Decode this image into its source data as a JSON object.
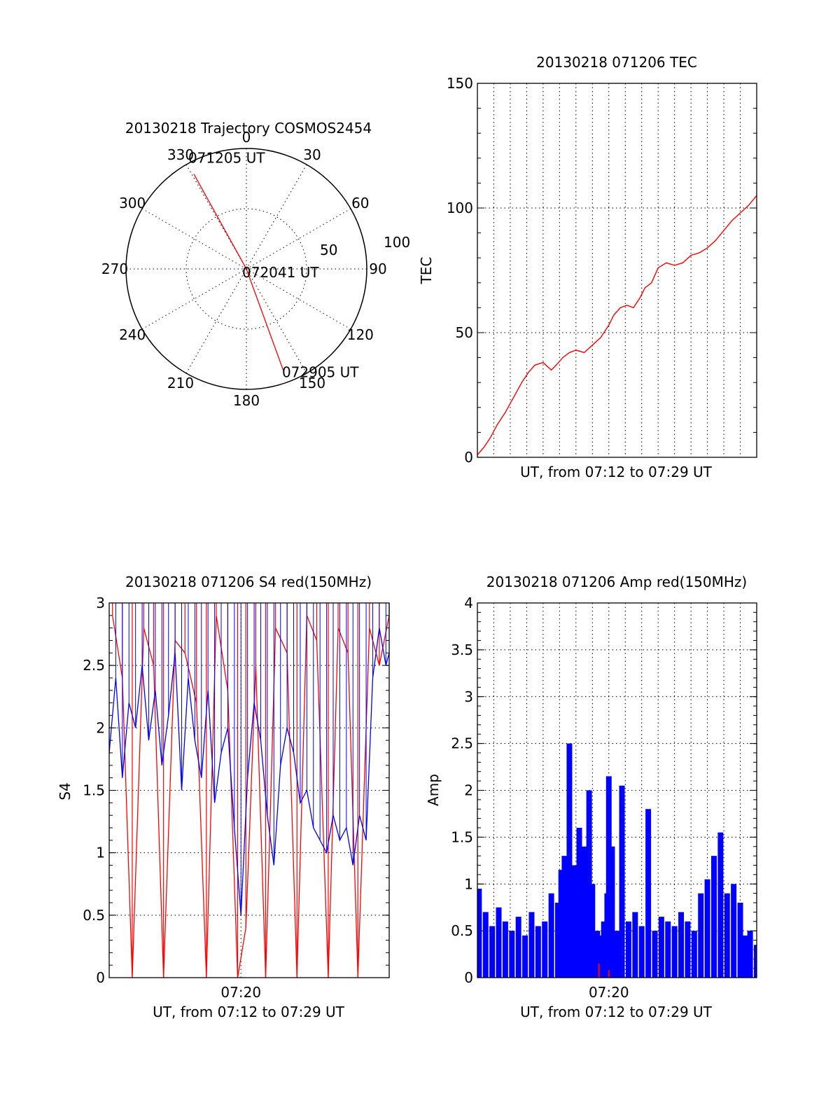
{
  "chart_data": [
    {
      "type": "polar",
      "title": "20130218 Trajectory COSMOS2454",
      "r_ticks": [
        50,
        100
      ],
      "angle_labels": [
        "0",
        "30",
        "60",
        "90",
        "120",
        "150",
        "180",
        "210",
        "240",
        "270",
        "300",
        "330"
      ],
      "angle_values": [
        0,
        30,
        60,
        90,
        120,
        150,
        180,
        210,
        240,
        270,
        300,
        330
      ],
      "rmax": 100,
      "trajectory": {
        "color": "#ff0000",
        "points": [
          {
            "az": 331,
            "zen": 90,
            "label": "071205 UT"
          },
          {
            "az": 0,
            "zen": 0,
            "label": "072041 UT"
          },
          {
            "az": 160,
            "zen": 90,
            "label": "072905 UT"
          }
        ]
      }
    },
    {
      "type": "line",
      "title": "20130218 071206 TEC",
      "xlabel": "UT, from 07:12 to 07:29 UT",
      "ylabel": "TEC",
      "ylim": [
        0,
        150
      ],
      "yticks": [
        "0",
        "50",
        "100",
        "150"
      ],
      "xlim": [
        0,
        17
      ],
      "color": "#ff0000",
      "series": [
        {
          "x": [
            0,
            0.4,
            0.8,
            1.2,
            1.7,
            2.2,
            2.7,
            3.1,
            3.5,
            4.0,
            4.5,
            4.8,
            5.2,
            5.6,
            6.0,
            6.5,
            7.0,
            7.5,
            8.0,
            8.3,
            8.7,
            9.1,
            9.5,
            9.9,
            10.2,
            10.6,
            11.0,
            11.5,
            12.0,
            12.5,
            13.0,
            13.5,
            14.0,
            14.5,
            15.0,
            15.5,
            16.0,
            16.5,
            17.0
          ],
          "y": [
            1,
            4,
            8,
            13,
            18,
            24,
            30,
            34,
            37,
            38,
            35,
            37,
            40,
            42,
            43,
            42,
            45,
            48,
            53,
            57,
            60,
            61,
            60,
            64,
            68,
            70,
            76,
            78,
            77,
            78,
            81,
            82,
            84,
            87,
            91,
            95,
            98,
            101,
            105
          ]
        }
      ]
    },
    {
      "type": "line",
      "title": "20130218 071206 S4 red(150MHz)",
      "xlabel": "UT, from 07:12 to 07:29 UT",
      "ylabel": "S4",
      "ylim": [
        0,
        3
      ],
      "yticks": [
        "0",
        "0.5",
        "1",
        "1.5",
        "2",
        "2.5",
        "3"
      ],
      "xlim": [
        0,
        17
      ],
      "xtick_label": "07:20",
      "xtick_value": 8,
      "series": [
        {
          "color": "#ff0000",
          "x": [
            0.2,
            0.8,
            1.4,
            2.1,
            2.7,
            3.3,
            4.0,
            4.6,
            5.3,
            5.9,
            6.5,
            7.2,
            7.8,
            8.3,
            8.9,
            9.5,
            10.1,
            10.8,
            11.4,
            12.0,
            12.6,
            13.3,
            13.9,
            14.5,
            15.1,
            15.8,
            16.4,
            17.0
          ],
          "y": [
            2.9,
            2.4,
            0,
            2.8,
            2.5,
            0,
            2.7,
            2.6,
            2.2,
            0,
            2.9,
            2.3,
            0,
            0.4,
            2.5,
            0,
            2.8,
            2.6,
            0,
            2.9,
            2.7,
            0,
            2.8,
            2.6,
            0,
            2.8,
            2.5,
            2.9
          ]
        },
        {
          "color": "#0000ff",
          "x": [
            0.0,
            0.4,
            0.8,
            1.2,
            1.6,
            2.0,
            2.4,
            2.8,
            3.2,
            3.6,
            4.0,
            4.4,
            4.8,
            5.2,
            5.6,
            6.0,
            6.4,
            6.8,
            7.2,
            7.6,
            8.0,
            8.4,
            8.8,
            9.2,
            9.6,
            10.0,
            10.4,
            10.8,
            11.2,
            11.6,
            12.0,
            12.4,
            12.8,
            13.2,
            13.6,
            14.0,
            14.4,
            14.8,
            15.2,
            15.6,
            16.0,
            16.4,
            16.8,
            17.0
          ],
          "y": [
            1.8,
            2.4,
            1.6,
            2.2,
            2.0,
            2.5,
            1.9,
            2.3,
            1.7,
            2.1,
            2.6,
            1.5,
            2.4,
            1.9,
            1.6,
            2.3,
            1.4,
            1.8,
            2.0,
            1.2,
            0.5,
            1.6,
            2.2,
            1.9,
            1.3,
            0.9,
            1.7,
            2.0,
            1.8,
            1.4,
            1.5,
            1.2,
            1.1,
            1.0,
            1.3,
            1.1,
            1.2,
            0.9,
            1.3,
            1.1,
            2.4,
            2.8,
            2.5,
            2.6
          ]
        }
      ]
    },
    {
      "type": "bar",
      "title": "20130218 071206 Amp red(150MHz)",
      "xlabel": "UT, from 07:12 to 07:29 UT",
      "ylabel": "Amp",
      "ylim": [
        0,
        4
      ],
      "yticks": [
        "0",
        "0.5",
        "1",
        "1.5",
        "2",
        "2.5",
        "3",
        "3.5",
        "4"
      ],
      "xlim": [
        0,
        17
      ],
      "xtick_label": "07:20",
      "xtick_value": 8,
      "color": "#0000ff",
      "series": [
        {
          "x": [
            0.1,
            0.5,
            0.9,
            1.3,
            1.7,
            2.1,
            2.5,
            2.9,
            3.3,
            3.7,
            4.1,
            4.5,
            4.9,
            5.1,
            5.3,
            5.6,
            5.9,
            6.2,
            6.5,
            6.8,
            7.0,
            7.3,
            7.5,
            7.7,
            7.9,
            8.0,
            8.2,
            8.5,
            8.8,
            9.2,
            9.6,
            10.0,
            10.4,
            10.8,
            11.2,
            11.6,
            12.0,
            12.4,
            12.8,
            13.2,
            13.6,
            14.0,
            14.4,
            14.8,
            15.2,
            15.6,
            16.0,
            16.3,
            16.6,
            17.0
          ],
          "y": [
            0.95,
            0.7,
            0.55,
            0.75,
            0.6,
            0.5,
            0.65,
            0.45,
            0.7,
            0.55,
            0.6,
            0.9,
            0.8,
            1.15,
            1.3,
            2.5,
            1.2,
            1.6,
            1.4,
            2.0,
            1.0,
            0.5,
            0.45,
            0.6,
            0.9,
            2.15,
            1.4,
            0.5,
            2.05,
            0.6,
            0.7,
            0.55,
            1.8,
            0.5,
            0.65,
            0.6,
            0.55,
            0.7,
            0.6,
            0.5,
            0.9,
            1.05,
            1.3,
            1.55,
            0.9,
            1.0,
            0.8,
            0.45,
            0.5,
            0.35
          ]
        }
      ],
      "red_marks": [
        {
          "x": 7.4,
          "y": 0.15
        },
        {
          "x": 8.0,
          "y": 0.08
        }
      ]
    }
  ]
}
